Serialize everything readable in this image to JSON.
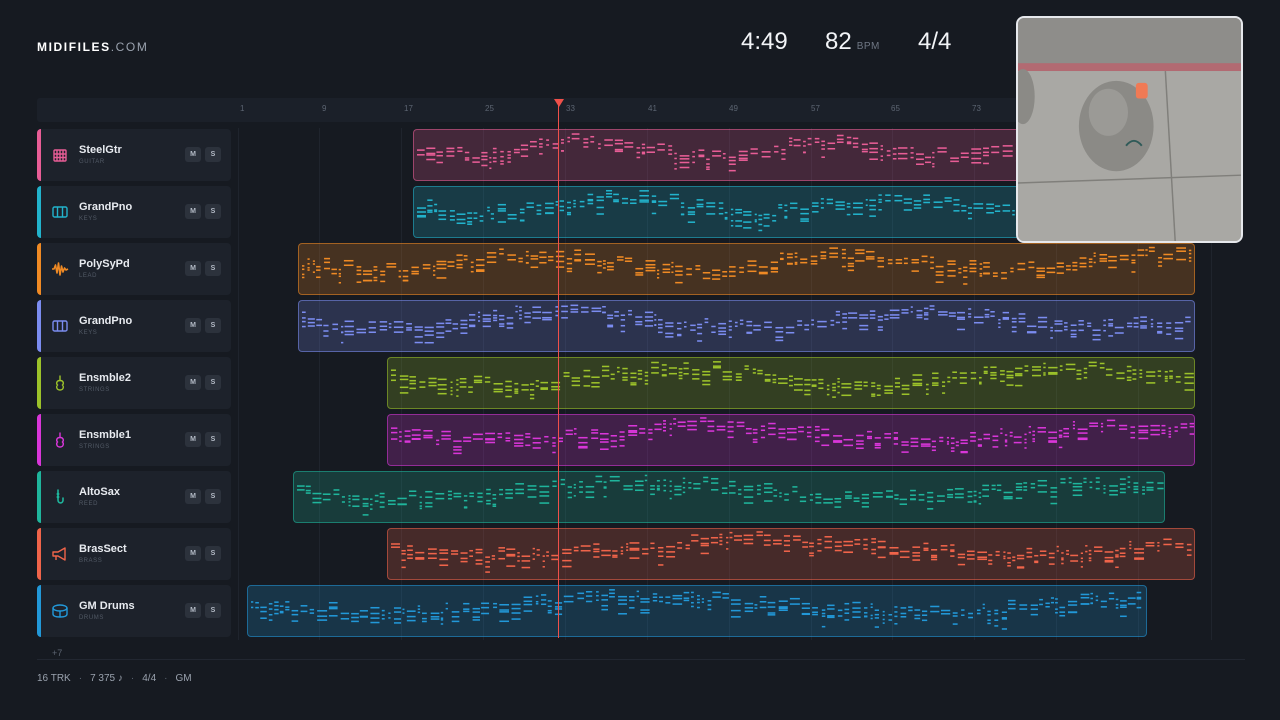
{
  "app": {
    "brand": "MIDIFILES",
    "domain": ".COM"
  },
  "header": {
    "time": "4:49",
    "bpm": "82",
    "bpm_unit": "BPM",
    "signature": "4/4"
  },
  "ruler": {
    "ticks": [
      "1",
      "9",
      "17",
      "25",
      "33",
      "41",
      "49",
      "57",
      "65",
      "73"
    ]
  },
  "playhead": {
    "bar": 33
  },
  "tracks": [
    {
      "name": "SteelGtr",
      "type": "GUITAR",
      "color": "#e85d96",
      "icon": "guitar-icon",
      "mute": "M",
      "solo": "S"
    },
    {
      "name": "GrandPno",
      "type": "KEYS",
      "color": "#22b3cc",
      "icon": "keys-icon",
      "mute": "M",
      "solo": "S"
    },
    {
      "name": "PolySyPd",
      "type": "LEAD",
      "color": "#f08a24",
      "icon": "waveform-icon",
      "mute": "M",
      "solo": "S"
    },
    {
      "name": "GrandPno",
      "type": "KEYS",
      "color": "#7b8cf0",
      "icon": "keys-icon",
      "mute": "M",
      "solo": "S"
    },
    {
      "name": "Ensmble2",
      "type": "STRINGS",
      "color": "#9cc22a",
      "icon": "violin-icon",
      "mute": "M",
      "solo": "S"
    },
    {
      "name": "Ensmble1",
      "type": "STRINGS",
      "color": "#d936d9",
      "icon": "violin-icon",
      "mute": "M",
      "solo": "S"
    },
    {
      "name": "AltoSax",
      "type": "REED",
      "color": "#1fb59c",
      "icon": "saxophone-icon",
      "mute": "M",
      "solo": "S"
    },
    {
      "name": "BrasSect",
      "type": "BRASS",
      "color": "#f0644a",
      "icon": "horn-icon",
      "mute": "M",
      "solo": "S"
    },
    {
      "name": "GM Drums",
      "type": "DRUMS",
      "color": "#2298d8",
      "icon": "drum-icon",
      "mute": "M",
      "solo": "S"
    }
  ],
  "more_tracks": "+7",
  "footer": {
    "tracks": "16 TRK",
    "notes": "7 375 ♪",
    "signature": "4/4",
    "standard": "GM"
  }
}
